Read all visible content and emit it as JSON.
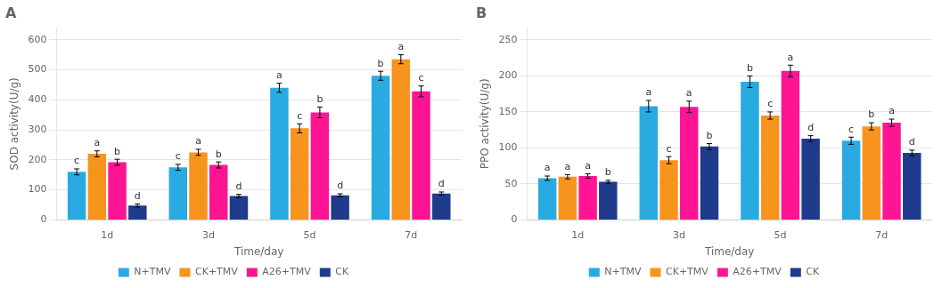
{
  "chart_data": [
    {
      "type": "bar",
      "title": "A",
      "xlabel": "Time/day",
      "ylabel": "SOD activity(U/g)",
      "categories": [
        "1d",
        "3d",
        "5d",
        "7d"
      ],
      "series": [
        {
          "name": "N+TMV",
          "color": "#29ABE2",
          "values": [
            160,
            175,
            440,
            480
          ],
          "errors": [
            10,
            10,
            15,
            15
          ],
          "letters": [
            "c",
            "c",
            "a",
            "b"
          ]
        },
        {
          "name": "CK+TMV",
          "color": "#F7941D",
          "values": [
            220,
            225,
            305,
            535
          ],
          "errors": [
            10,
            10,
            15,
            15
          ],
          "letters": [
            "a",
            "a",
            "c",
            "a"
          ]
        },
        {
          "name": "A26+TMV",
          "color": "#FF1493",
          "values": [
            192,
            183,
            358,
            428
          ],
          "errors": [
            10,
            10,
            18,
            18
          ],
          "letters": [
            "b",
            "b",
            "b",
            "c"
          ]
        },
        {
          "name": "CK",
          "color": "#1F3B8C",
          "values": [
            48,
            80,
            82,
            88
          ],
          "errors": [
            5,
            5,
            5,
            5
          ],
          "letters": [
            "d",
            "d",
            "d",
            "d"
          ]
        }
      ],
      "ylim": [
        0,
        640
      ],
      "yticks": [
        0,
        100,
        200,
        300,
        400,
        500,
        600
      ],
      "grid": true,
      "legend": "bottom"
    },
    {
      "type": "bar",
      "title": "B",
      "xlabel": "Time/day",
      "ylabel": "PPO activity(U/g)",
      "categories": [
        "1d",
        "3d",
        "5d",
        "7d"
      ],
      "series": [
        {
          "name": "N+TMV",
          "color": "#29ABE2",
          "values": [
            58,
            158,
            192,
            110
          ],
          "errors": [
            3,
            8,
            8,
            5
          ],
          "letters": [
            "a",
            "a",
            "b",
            "c"
          ]
        },
        {
          "name": "CK+TMV",
          "color": "#F7941D",
          "values": [
            60,
            83,
            145,
            130
          ],
          "errors": [
            3,
            5,
            5,
            5
          ],
          "letters": [
            "a",
            "c",
            "c",
            "b"
          ]
        },
        {
          "name": "A26+TMV",
          "color": "#FF1493",
          "values": [
            61,
            157,
            207,
            135
          ],
          "errors": [
            3,
            8,
            8,
            5
          ],
          "letters": [
            "a",
            "a",
            "a",
            "a"
          ]
        },
        {
          "name": "CK",
          "color": "#1F3B8C",
          "values": [
            53,
            102,
            113,
            93
          ],
          "errors": [
            2,
            4,
            4,
            4
          ],
          "letters": [
            "b",
            "b",
            "d",
            "d"
          ]
        }
      ],
      "ylim": [
        0,
        267
      ],
      "yticks": [
        0,
        50,
        100,
        150,
        200,
        250
      ],
      "grid": true,
      "legend": "bottom"
    }
  ]
}
